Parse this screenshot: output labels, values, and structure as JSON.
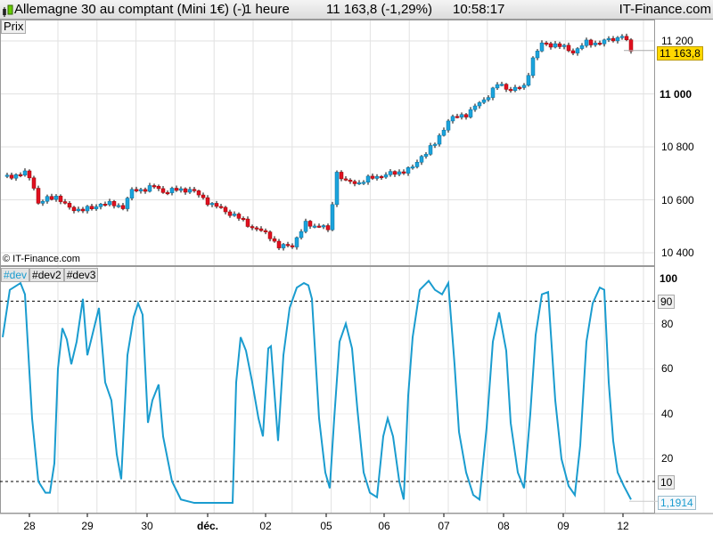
{
  "title": {
    "instrument": "Allemagne 30 au comptant (Mini 1€) (-)",
    "period": "1 heure",
    "price": "11 163,8 (-1,29%)",
    "time": "10:58:17",
    "brand": "IT-Finance.com"
  },
  "price_panel": {
    "label": "Prix",
    "copyright": "© IT-Finance.com",
    "current": "11 163,8",
    "axis": [
      "11 200",
      "11 000",
      "10 800",
      "10 600",
      "10 400"
    ]
  },
  "osc_panel": {
    "tabs": [
      "#dev",
      "#dev2",
      "#dev3"
    ],
    "axis": [
      "100",
      "80",
      "60",
      "40",
      "20"
    ],
    "level_high": "90",
    "level_low": "10",
    "current": "1,1914"
  },
  "x_axis": [
    "28",
    "29",
    "30",
    "déc.",
    "02",
    "05",
    "06",
    "07",
    "08",
    "09",
    "12"
  ],
  "colors": {
    "up": "#1aa3dc",
    "down": "#e01020",
    "osc": "#1a9ccf"
  },
  "chart_data": [
    {
      "type": "candlestick",
      "title": "Allemagne 30 au comptant (Mini 1€)",
      "ylim": [
        10380,
        11260
      ],
      "x_unit": "hour",
      "close_keypoints": [
        [
          1,
          10689
        ],
        [
          5.6,
          10700
        ],
        [
          7,
          10649
        ],
        [
          8,
          10588
        ],
        [
          12,
          10615
        ],
        [
          15,
          10565
        ],
        [
          20,
          10565
        ],
        [
          22,
          10588
        ],
        [
          27,
          10575
        ],
        [
          29,
          10632
        ],
        [
          34,
          10649
        ],
        [
          36,
          10632
        ],
        [
          42,
          10640
        ],
        [
          47,
          10582
        ],
        [
          52,
          10541
        ],
        [
          56,
          10497
        ],
        [
          60,
          10464
        ],
        [
          62,
          10420
        ],
        [
          65,
          10430
        ],
        [
          68,
          10508
        ],
        [
          72,
          10500
        ],
        [
          73.6,
          10464
        ],
        [
          74.4,
          10716
        ],
        [
          77,
          10666
        ],
        [
          80,
          10666
        ],
        [
          84,
          10689
        ],
        [
          88,
          10700
        ],
        [
          92,
          10720
        ],
        [
          94,
          10766
        ],
        [
          97,
          10810
        ],
        [
          100,
          10901
        ],
        [
          104,
          10924
        ],
        [
          108,
          10978
        ],
        [
          111,
          11035
        ],
        [
          114,
          11018
        ],
        [
          117,
          11025
        ],
        [
          119,
          11136
        ],
        [
          121,
          11187
        ],
        [
          124,
          11187
        ],
        [
          128,
          11160
        ],
        [
          131,
          11193
        ],
        [
          134,
          11193
        ],
        [
          138,
          11213
        ],
        [
          139.4,
          11227
        ],
        [
          140.6,
          11160
        ],
        [
          141.6,
          11164
        ]
      ]
    },
    {
      "type": "line",
      "name": "#dev",
      "ylim": [
        -2,
        104
      ],
      "levels": [
        90,
        10
      ],
      "x_unit": "hour",
      "points": [
        [
          0,
          74
        ],
        [
          1.6,
          95
        ],
        [
          4,
          98
        ],
        [
          5,
          93
        ],
        [
          6.6,
          38
        ],
        [
          8,
          10
        ],
        [
          9.6,
          5
        ],
        [
          10.6,
          5
        ],
        [
          11.6,
          18
        ],
        [
          12.4,
          60
        ],
        [
          13.4,
          78
        ],
        [
          14.4,
          73
        ],
        [
          15.4,
          62
        ],
        [
          16.6,
          72
        ],
        [
          18,
          91
        ],
        [
          19,
          66
        ],
        [
          20,
          74
        ],
        [
          21.6,
          87
        ],
        [
          23,
          54
        ],
        [
          24.4,
          46
        ],
        [
          25.6,
          22
        ],
        [
          26.6,
          11
        ],
        [
          28,
          66
        ],
        [
          29.4,
          83
        ],
        [
          30.4,
          89
        ],
        [
          31.4,
          84
        ],
        [
          32.6,
          36
        ],
        [
          33.6,
          46
        ],
        [
          35,
          53
        ],
        [
          36,
          30
        ],
        [
          38,
          10
        ],
        [
          40,
          2
        ],
        [
          43,
          0.5
        ],
        [
          51.6,
          0.5
        ],
        [
          52.4,
          54
        ],
        [
          53.4,
          74
        ],
        [
          54.6,
          68
        ],
        [
          56,
          54
        ],
        [
          57.4,
          38
        ],
        [
          58.4,
          30
        ],
        [
          59.6,
          69
        ],
        [
          60.2,
          70
        ],
        [
          61.8,
          28
        ],
        [
          63,
          66
        ],
        [
          64.4,
          87
        ],
        [
          66,
          96
        ],
        [
          67.6,
          98
        ],
        [
          68.6,
          97
        ],
        [
          69.4,
          91
        ],
        [
          71,
          38
        ],
        [
          72.4,
          14
        ],
        [
          73.4,
          7
        ],
        [
          74.4,
          38
        ],
        [
          75.6,
          72
        ],
        [
          77,
          80
        ],
        [
          78.4,
          69
        ],
        [
          79.6,
          42
        ],
        [
          81,
          14
        ],
        [
          82.4,
          5
        ],
        [
          84,
          3
        ],
        [
          85.4,
          30
        ],
        [
          86.4,
          38
        ],
        [
          87.6,
          30
        ],
        [
          89,
          10
        ],
        [
          90,
          2
        ],
        [
          91,
          48
        ],
        [
          92,
          74
        ],
        [
          93.6,
          95
        ],
        [
          95.6,
          99
        ],
        [
          97,
          95
        ],
        [
          98.6,
          93
        ],
        [
          100,
          98
        ],
        [
          101.4,
          62
        ],
        [
          102.4,
          32
        ],
        [
          104,
          14
        ],
        [
          105.6,
          4
        ],
        [
          107,
          2
        ],
        [
          108.6,
          34
        ],
        [
          110,
          72
        ],
        [
          111.4,
          85
        ],
        [
          113,
          68
        ],
        [
          114,
          36
        ],
        [
          115.6,
          14
        ],
        [
          117,
          7
        ],
        [
          118.4,
          40
        ],
        [
          119.6,
          75
        ],
        [
          121,
          93
        ],
        [
          122.4,
          94
        ],
        [
          124,
          46
        ],
        [
          125.4,
          20
        ],
        [
          127,
          8
        ],
        [
          128.4,
          4
        ],
        [
          129.6,
          26
        ],
        [
          131,
          72
        ],
        [
          132.4,
          89
        ],
        [
          134,
          96
        ],
        [
          135,
          95
        ],
        [
          136,
          54
        ],
        [
          137,
          28
        ],
        [
          138,
          14
        ],
        [
          139.4,
          8
        ],
        [
          141,
          2
        ]
      ]
    }
  ]
}
